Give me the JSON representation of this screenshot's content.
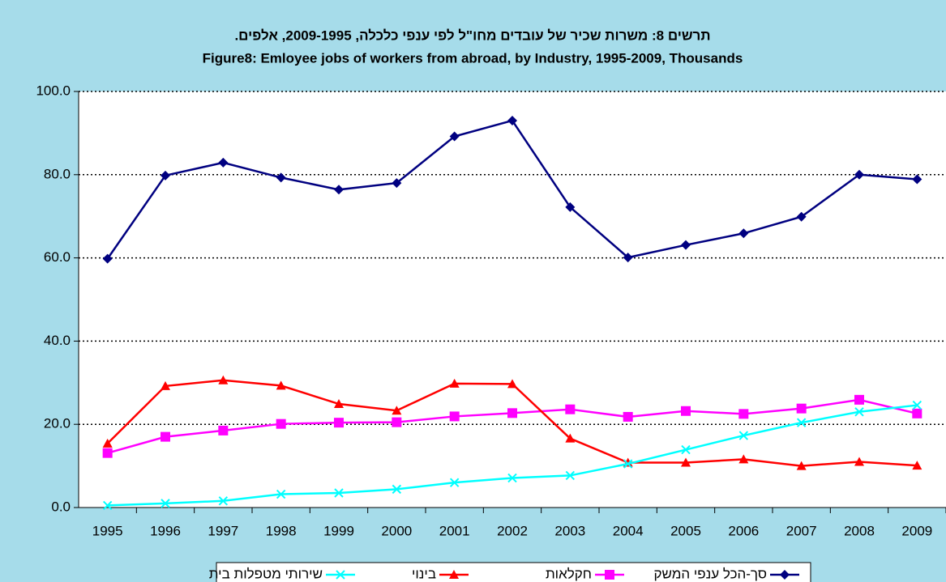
{
  "chart_data": {
    "type": "line",
    "title": "תרשים 8: משרות שכיר של עובדים מחו\"ל לפי ענפי כלכלה, 2009-1995, אלפים.",
    "subtitle": "Figure8: Emloyee jobs of workers from abroad, by Industry, 1995-2009, Thousands",
    "categories": [
      "1995",
      "1996",
      "1997",
      "1998",
      "1999",
      "2000",
      "2001",
      "2002",
      "2003",
      "2004",
      "2005",
      "2006",
      "2007",
      "2008",
      "2009"
    ],
    "series": [
      {
        "name": "סך-הכל ענפי המשק",
        "color": "#000080",
        "marker": "diamond",
        "values": [
          59.8,
          79.8,
          82.9,
          79.3,
          76.4,
          78.0,
          89.2,
          93.0,
          72.2,
          60.1,
          63.1,
          65.9,
          69.9,
          80.0,
          78.9
        ]
      },
      {
        "name": "חקלאות",
        "color": "#ff00ff",
        "marker": "square",
        "values": [
          13.1,
          17.0,
          18.5,
          20.1,
          20.4,
          20.5,
          21.9,
          22.7,
          23.6,
          21.8,
          23.2,
          22.5,
          23.8,
          25.9,
          22.6
        ]
      },
      {
        "name": "בינוי",
        "color": "#ff0000",
        "marker": "triangle",
        "values": [
          15.4,
          29.2,
          30.6,
          29.3,
          24.9,
          23.3,
          29.8,
          29.7,
          16.6,
          10.8,
          10.8,
          11.6,
          10.0,
          11.0,
          10.1
        ]
      },
      {
        "name": "שירותי מטפלות בית",
        "color": "#00ffff",
        "marker": "x",
        "values": [
          0.5,
          1.0,
          1.6,
          3.2,
          3.5,
          4.4,
          6.0,
          7.1,
          7.7,
          10.5,
          13.9,
          17.3,
          20.4,
          23.0,
          24.6
        ]
      }
    ],
    "ylim": [
      0,
      100
    ],
    "yticks": [
      {
        "value": 0,
        "label": "0.0"
      },
      {
        "value": 20,
        "label": "20.0"
      },
      {
        "value": 40,
        "label": "40.0"
      },
      {
        "value": 60,
        "label": "60.0"
      },
      {
        "value": 80,
        "label": "80.0"
      },
      {
        "value": 100,
        "label": "100.0"
      }
    ],
    "grid": true,
    "legend": "bottom"
  }
}
